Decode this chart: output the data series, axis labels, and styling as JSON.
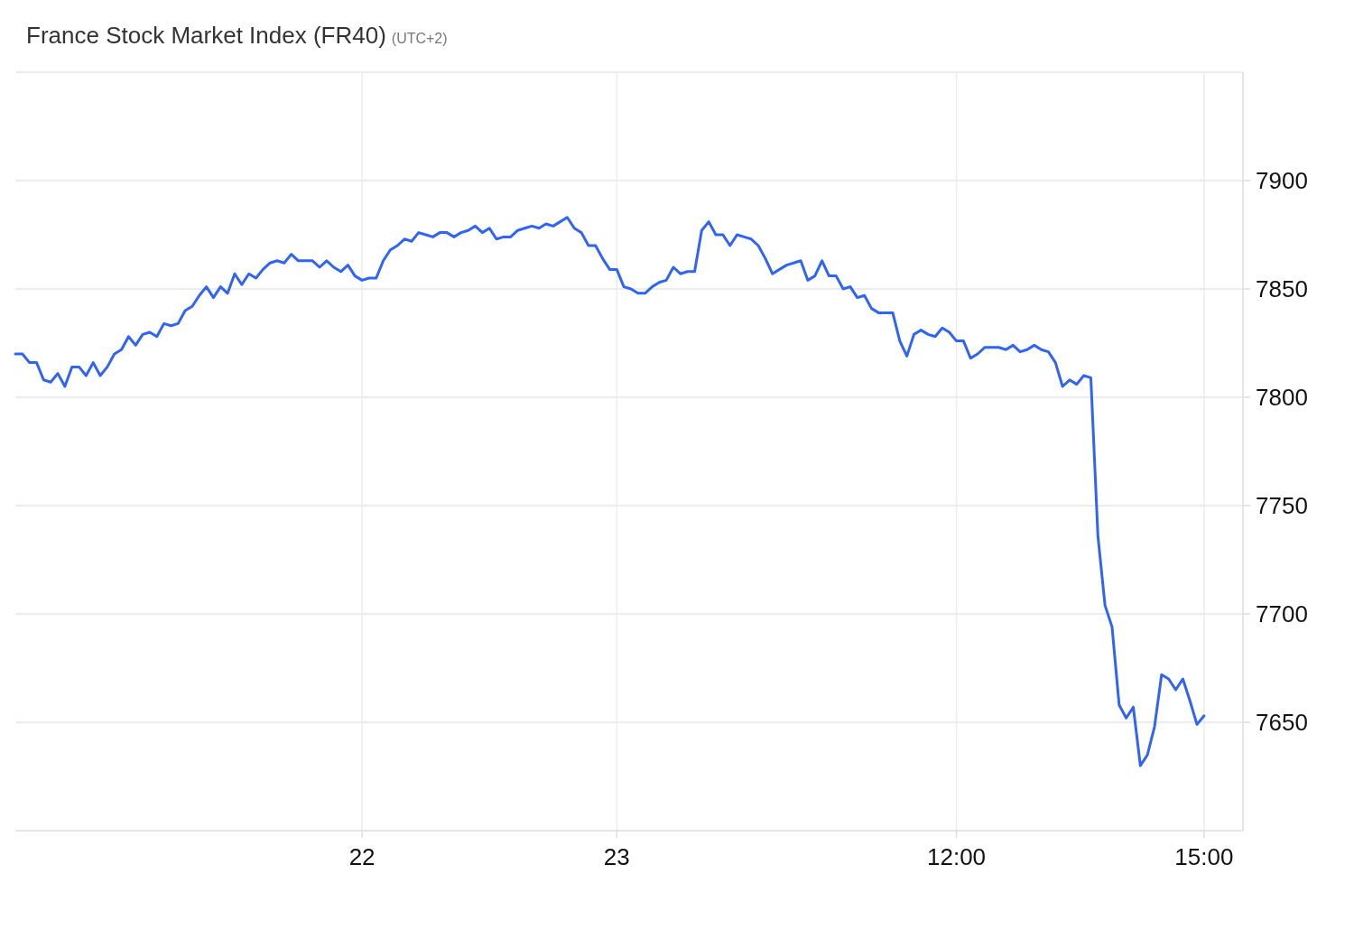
{
  "chart_data": {
    "type": "line",
    "title": "France Stock Market Index (FR40)",
    "subtitle": "(UTC+2)",
    "categories": [
      null,
      null,
      null,
      null,
      null,
      null,
      null,
      null,
      null,
      null,
      null,
      null,
      null,
      null,
      null,
      null,
      null,
      null,
      null,
      null,
      null,
      null,
      null,
      null,
      null,
      null,
      null,
      null,
      null,
      null,
      null,
      null,
      null,
      null,
      null,
      null,
      null,
      null,
      null,
      null,
      null,
      null,
      null,
      null,
      null,
      null,
      null,
      null,
      null,
      "22",
      null,
      null,
      null,
      null,
      null,
      null,
      null,
      null,
      null,
      null,
      null,
      null,
      null,
      null,
      null,
      null,
      null,
      null,
      null,
      null,
      null,
      null,
      null,
      null,
      null,
      null,
      null,
      null,
      null,
      null,
      null,
      null,
      null,
      null,
      null,
      "23",
      null,
      null,
      null,
      null,
      null,
      null,
      null,
      null,
      null,
      null,
      null,
      null,
      null,
      null,
      null,
      null,
      null,
      null,
      null,
      null,
      null,
      null,
      null,
      null,
      null,
      null,
      null,
      null,
      null,
      null,
      null,
      null,
      null,
      null,
      null,
      null,
      null,
      null,
      null,
      null,
      null,
      null,
      null,
      null,
      null,
      null,
      null,
      "12:00",
      null,
      null,
      null,
      null,
      null,
      null,
      null,
      null,
      null,
      null,
      null,
      null,
      null,
      null,
      null,
      null,
      null,
      null,
      null,
      null,
      null,
      null,
      null,
      null,
      null,
      null,
      null,
      null,
      null,
      null,
      null,
      null,
      null,
      null,
      "15:00"
    ],
    "series": [
      {
        "color": "#2f64f6",
        "values": [
          7820,
          7820,
          7816,
          7816,
          7808,
          7807,
          7811,
          7805,
          7814,
          7814,
          7810,
          7816,
          7810,
          7814,
          7820,
          7822,
          7828,
          7824,
          7829,
          7830,
          7828,
          7834,
          7833,
          7834,
          7840,
          7842,
          7847,
          7851,
          7846,
          7851,
          7848,
          7857,
          7852,
          7857,
          7855,
          7859,
          7862,
          7863,
          7862,
          7866,
          7863,
          7863,
          7863,
          7860,
          7863,
          7860,
          7858,
          7861,
          7856,
          7854,
          7855,
          7855,
          7863,
          7868,
          7870,
          7873,
          7872,
          7876,
          7875,
          7874,
          7876,
          7876,
          7874,
          7876,
          7877,
          7879,
          7876,
          7878,
          7873,
          7874,
          7874,
          7877,
          7878,
          7879,
          7878,
          7880,
          7879,
          7881,
          7883,
          7878,
          7876,
          7870,
          7870,
          7864,
          7859,
          7859,
          7851,
          7850,
          7848,
          7848,
          7851,
          7853,
          7854,
          7860,
          7857,
          7858,
          7858,
          7877,
          7881,
          7875,
          7875,
          7870,
          7875,
          7874,
          7873,
          7870,
          7864,
          7857,
          7859,
          7861,
          7862,
          7863,
          7854,
          7856,
          7863,
          7856,
          7856,
          7850,
          7851,
          7846,
          7847,
          7841,
          7839,
          7839,
          7839,
          7826,
          7819,
          7829,
          7831,
          7829,
          7828,
          7832,
          7830,
          7826,
          7826,
          7818,
          7820,
          7823,
          7823,
          7823,
          7822,
          7824,
          7821,
          7822,
          7824,
          7822,
          7821,
          7816,
          7805,
          7808,
          7806,
          7810,
          7809,
          7736,
          7704,
          7694,
          7658,
          7652,
          7657,
          7630,
          7635,
          7648,
          7672,
          7670,
          7665,
          7670,
          7660,
          7649,
          7653
        ]
      }
    ],
    "ylim": [
      7600,
      7950
    ],
    "yticks": [
      7650,
      7700,
      7750,
      7800,
      7850,
      7900
    ],
    "grid": true,
    "line_style": "solid"
  }
}
